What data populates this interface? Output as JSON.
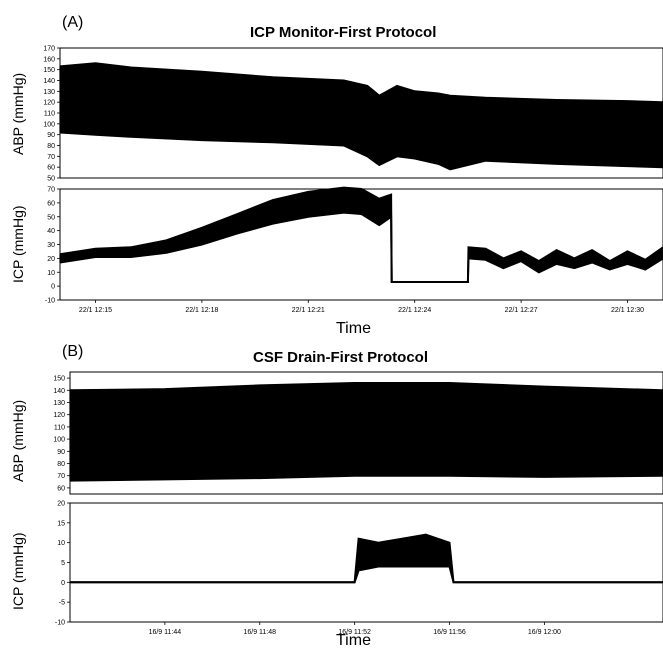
{
  "figure": {
    "panelA": {
      "letter": "(A)",
      "title": "ICP Monitor-First Protocol"
    },
    "panelB": {
      "letter": "(B)",
      "title": "CSF Drain-First Protocol"
    }
  },
  "chart_data": [
    {
      "type": "line",
      "title": "ICP Monitor-First Protocol",
      "ylabel": "ABP (mmHg)",
      "xlabel": "",
      "ylim": [
        50,
        170
      ],
      "yticks": [
        50,
        60,
        70,
        80,
        90,
        100,
        110,
        120,
        130,
        140,
        150,
        160,
        170
      ],
      "xlim": [
        "22/1 12:14",
        "22/1 12:31"
      ],
      "xticks": [],
      "series": [
        {
          "name": "",
          "description": "systolic envelope",
          "x": [
            "22/1 12:14",
            "22/1 12:15",
            "22/1 12:16",
            "22/1 12:18",
            "22/1 12:20",
            "22/1 12:22",
            "22/1 12:22:40",
            "22/1 12:23",
            "22/1 12:23:30",
            "22/1 12:24",
            "22/1 12:24:40",
            "22/1 12:25",
            "22/1 12:26",
            "22/1 12:28",
            "22/1 12:30",
            "22/1 12:31"
          ],
          "values": [
            153,
            156,
            152,
            148,
            143,
            140,
            135,
            126,
            135,
            130,
            128,
            126,
            124,
            122,
            121,
            120
          ]
        },
        {
          "name": "",
          "description": "diastolic envelope",
          "x": [
            "22/1 12:14",
            "22/1 12:15",
            "22/1 12:16",
            "22/1 12:18",
            "22/1 12:20",
            "22/1 12:22",
            "22/1 12:22:40",
            "22/1 12:23",
            "22/1 12:23:30",
            "22/1 12:24",
            "22/1 12:24:40",
            "22/1 12:25",
            "22/1 12:26",
            "22/1 12:28",
            "22/1 12:30",
            "22/1 12:31"
          ],
          "values": [
            92,
            90,
            88,
            85,
            83,
            80,
            70,
            62,
            70,
            68,
            63,
            58,
            66,
            63,
            61,
            60
          ]
        }
      ]
    },
    {
      "type": "line",
      "title": "",
      "ylabel": "ICP (mmHg)",
      "xlabel": "Time",
      "ylim": [
        -10,
        70
      ],
      "yticks": [
        -10,
        0,
        10,
        20,
        30,
        40,
        50,
        60,
        70
      ],
      "xlim": [
        "22/1 12:14",
        "22/1 12:31"
      ],
      "xticks": [
        "22/1 12:15",
        "22/1 12:18",
        "22/1 12:21",
        "22/1 12:24",
        "22/1 12:27",
        "22/1 12:30"
      ],
      "series": [
        {
          "name": "",
          "description": "upper envelope",
          "x": [
            "22/1 12:14",
            "22/1 12:15",
            "22/1 12:16",
            "22/1 12:17",
            "22/1 12:18",
            "22/1 12:19",
            "22/1 12:20",
            "22/1 12:21",
            "22/1 12:22",
            "22/1 12:22:30",
            "22/1 12:23",
            "22/1 12:23:20",
            "22/1 12:23:21",
            "22/1 12:25:30",
            "22/1 12:25:31",
            "22/1 12:26",
            "22/1 12:26:30",
            "22/1 12:27",
            "22/1 12:27:30",
            "22/1 12:28",
            "22/1 12:28:30",
            "22/1 12:29",
            "22/1 12:29:30",
            "22/1 12:30",
            "22/1 12:30:30",
            "22/1 12:31"
          ],
          "values": [
            23,
            27,
            28,
            33,
            42,
            52,
            62,
            68,
            71,
            70,
            63,
            66,
            3,
            3,
            28,
            27,
            20,
            25,
            18,
            26,
            20,
            26,
            18,
            25,
            19,
            28
          ]
        },
        {
          "name": "",
          "description": "lower envelope",
          "x": [
            "22/1 12:14",
            "22/1 12:15",
            "22/1 12:16",
            "22/1 12:17",
            "22/1 12:18",
            "22/1 12:19",
            "22/1 12:20",
            "22/1 12:21",
            "22/1 12:22",
            "22/1 12:22:30",
            "22/1 12:23",
            "22/1 12:23:20",
            "22/1 12:23:21",
            "22/1 12:25:30",
            "22/1 12:25:31",
            "22/1 12:26",
            "22/1 12:26:30",
            "22/1 12:27",
            "22/1 12:27:30",
            "22/1 12:28",
            "22/1 12:28:30",
            "22/1 12:29",
            "22/1 12:29:30",
            "22/1 12:30",
            "22/1 12:30:30",
            "22/1 12:31"
          ],
          "values": [
            17,
            21,
            21,
            24,
            30,
            38,
            45,
            50,
            53,
            52,
            44,
            50,
            3,
            3,
            20,
            19,
            13,
            18,
            10,
            16,
            13,
            17,
            12,
            16,
            12,
            20
          ]
        }
      ]
    },
    {
      "type": "line",
      "title": "CSF Drain-First Protocol",
      "ylabel": "ABP (mmHg)",
      "xlabel": "",
      "ylim": [
        55,
        155
      ],
      "yticks": [
        60,
        70,
        80,
        90,
        100,
        110,
        120,
        130,
        140,
        150
      ],
      "xlim": [
        "16/9 11:40",
        "16/9 12:05"
      ],
      "xticks": [],
      "series": [
        {
          "name": "",
          "description": "systolic envelope",
          "x": [
            "16/9 11:40",
            "16/9 11:44",
            "16/9 11:48",
            "16/9 11:52",
            "16/9 11:56",
            "16/9 12:00",
            "16/9 12:05"
          ],
          "values": [
            140,
            141,
            144,
            146,
            146,
            143,
            140
          ]
        },
        {
          "name": "",
          "description": "diastolic envelope",
          "x": [
            "16/9 11:40",
            "16/9 11:44",
            "16/9 11:48",
            "16/9 11:52",
            "16/9 11:56",
            "16/9 12:00",
            "16/9 12:05"
          ],
          "values": [
            66,
            67,
            68,
            70,
            70,
            69,
            70
          ]
        }
      ]
    },
    {
      "type": "line",
      "title": "",
      "ylabel": "ICP (mmHg)",
      "xlabel": "Time",
      "ylim": [
        -10,
        20
      ],
      "yticks": [
        -10,
        -5,
        0,
        5,
        10,
        15,
        20
      ],
      "xlim": [
        "16/9 11:40",
        "16/9 12:05"
      ],
      "xticks": [
        "16/9 11:44",
        "16/9 11:48",
        "16/9 11:52",
        "16/9 11:56",
        "16/9 12:00"
      ],
      "series": [
        {
          "name": "",
          "description": "upper envelope",
          "x": [
            "16/9 11:40",
            "16/9 11:52",
            "16/9 11:52:10",
            "16/9 11:53",
            "16/9 11:54",
            "16/9 11:55",
            "16/9 11:56",
            "16/9 11:56:10",
            "16/9 12:05"
          ],
          "values": [
            0,
            0,
            11,
            10,
            11,
            12,
            10,
            0,
            0
          ]
        },
        {
          "name": "",
          "description": "lower envelope",
          "x": [
            "16/9 11:40",
            "16/9 11:52",
            "16/9 11:52:10",
            "16/9 11:53",
            "16/9 11:54",
            "16/9 11:55",
            "16/9 11:56",
            "16/9 11:56:10",
            "16/9 12:05"
          ],
          "values": [
            0,
            0,
            3,
            4,
            4,
            4,
            4,
            0,
            0
          ]
        }
      ]
    }
  ]
}
